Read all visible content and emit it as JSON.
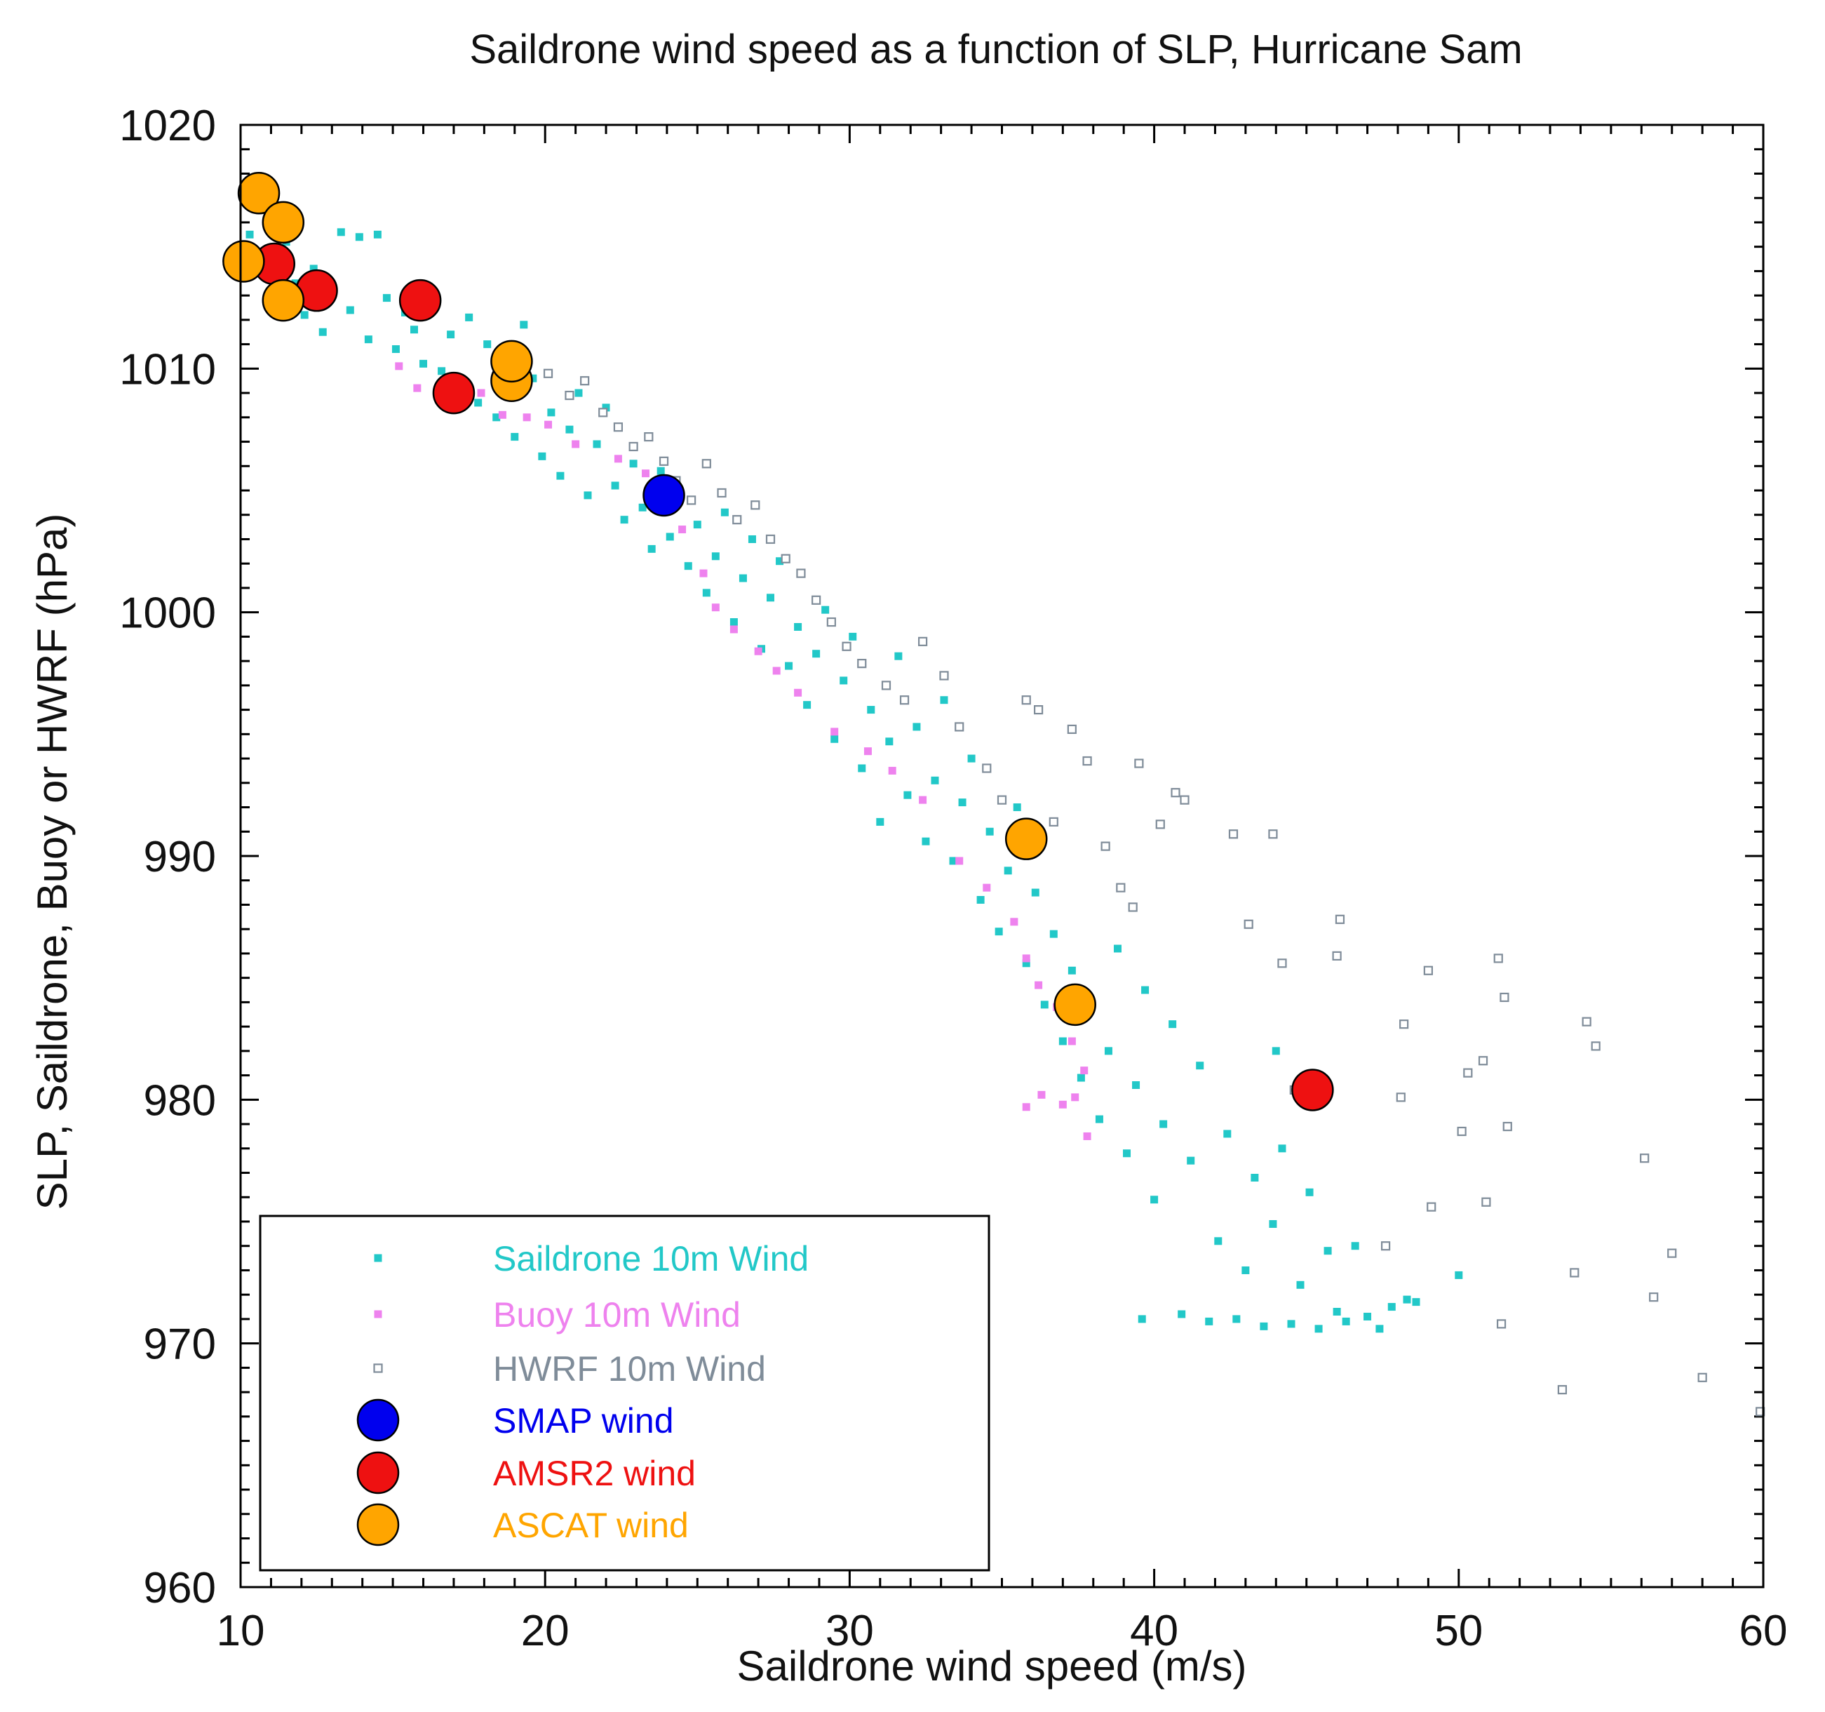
{
  "chart_data": {
    "type": "scatter",
    "title": "Saildrone wind  speed as a function of SLP, Hurricane Sam",
    "xlabel": "Saildrone wind speed (m/s)",
    "ylabel": "SLP, Saildrone, Buoy or HWRF (hPa)",
    "xlim": [
      10,
      60
    ],
    "ylim": [
      960,
      1020
    ],
    "xticks": [
      "10",
      "20",
      "30",
      "40",
      "50",
      "60"
    ],
    "yticks": [
      "960",
      "970",
      "980",
      "990",
      "1000",
      "1010",
      "1020"
    ],
    "legend_position": "bottom-left",
    "series": [
      {
        "name": "Saildrone 10m Wind",
        "marker": "filled-square",
        "color": "#22c8c8",
        "note": "dense cloud of several hundred points; representative sample",
        "points": [
          [
            10.3,
            1015.5
          ],
          [
            10.6,
            1014.8
          ],
          [
            10.9,
            1013.9
          ],
          [
            11.2,
            1012.8
          ],
          [
            11.5,
            1015.2
          ],
          [
            11.8,
            1013.5
          ],
          [
            12.1,
            1012.2
          ],
          [
            12.4,
            1014.1
          ],
          [
            12.7,
            1011.5
          ],
          [
            13.0,
            1013.0
          ],
          [
            13.3,
            1015.6
          ],
          [
            13.6,
            1012.4
          ],
          [
            13.9,
            1015.4
          ],
          [
            14.2,
            1011.2
          ],
          [
            14.5,
            1015.5
          ],
          [
            14.8,
            1012.9
          ],
          [
            15.1,
            1010.8
          ],
          [
            15.4,
            1012.3
          ],
          [
            15.7,
            1011.6
          ],
          [
            16.0,
            1010.2
          ],
          [
            16.3,
            1012.7
          ],
          [
            16.6,
            1009.9
          ],
          [
            16.9,
            1011.4
          ],
          [
            17.2,
            1009.1
          ],
          [
            17.5,
            1012.1
          ],
          [
            17.8,
            1008.6
          ],
          [
            18.1,
            1011.0
          ],
          [
            18.4,
            1008.0
          ],
          [
            18.7,
            1010.6
          ],
          [
            19.0,
            1007.2
          ],
          [
            19.3,
            1011.8
          ],
          [
            19.6,
            1009.6
          ],
          [
            19.9,
            1006.4
          ],
          [
            20.2,
            1008.2
          ],
          [
            20.5,
            1005.6
          ],
          [
            20.8,
            1007.5
          ],
          [
            21.1,
            1009.0
          ],
          [
            21.4,
            1004.8
          ],
          [
            21.7,
            1006.9
          ],
          [
            22.0,
            1008.4
          ],
          [
            22.3,
            1005.2
          ],
          [
            22.6,
            1003.8
          ],
          [
            22.9,
            1006.1
          ],
          [
            23.2,
            1004.3
          ],
          [
            23.5,
            1002.6
          ],
          [
            23.8,
            1005.8
          ],
          [
            24.1,
            1003.1
          ],
          [
            24.4,
            1004.6
          ],
          [
            24.7,
            1001.9
          ],
          [
            25.0,
            1003.6
          ],
          [
            25.3,
            1000.8
          ],
          [
            25.6,
            1002.3
          ],
          [
            25.9,
            1004.1
          ],
          [
            26.2,
            999.6
          ],
          [
            26.5,
            1001.4
          ],
          [
            26.8,
            1003.0
          ],
          [
            27.1,
            998.5
          ],
          [
            27.4,
            1000.6
          ],
          [
            27.7,
            1002.1
          ],
          [
            28.0,
            997.8
          ],
          [
            28.3,
            999.4
          ],
          [
            28.6,
            996.2
          ],
          [
            28.9,
            998.3
          ],
          [
            29.2,
            1000.1
          ],
          [
            29.5,
            994.8
          ],
          [
            29.8,
            997.2
          ],
          [
            30.1,
            999.0
          ],
          [
            30.4,
            993.6
          ],
          [
            30.7,
            996.0
          ],
          [
            31.0,
            991.4
          ],
          [
            31.3,
            994.7
          ],
          [
            31.6,
            998.2
          ],
          [
            31.9,
            992.5
          ],
          [
            32.2,
            995.3
          ],
          [
            32.5,
            990.6
          ],
          [
            32.8,
            993.1
          ],
          [
            33.1,
            996.4
          ],
          [
            33.4,
            989.8
          ],
          [
            33.7,
            992.2
          ],
          [
            34.0,
            994.0
          ],
          [
            34.3,
            988.2
          ],
          [
            34.6,
            991.0
          ],
          [
            34.9,
            986.9
          ],
          [
            35.2,
            989.4
          ],
          [
            35.5,
            992.0
          ],
          [
            35.8,
            985.6
          ],
          [
            36.1,
            988.5
          ],
          [
            36.4,
            983.9
          ],
          [
            36.7,
            986.8
          ],
          [
            37.0,
            982.4
          ],
          [
            37.3,
            985.3
          ],
          [
            37.6,
            980.9
          ],
          [
            37.9,
            983.7
          ],
          [
            38.2,
            979.2
          ],
          [
            38.5,
            982.0
          ],
          [
            38.8,
            986.2
          ],
          [
            39.1,
            977.8
          ],
          [
            39.4,
            980.6
          ],
          [
            39.7,
            984.5
          ],
          [
            40.0,
            975.9
          ],
          [
            40.3,
            979.0
          ],
          [
            40.6,
            983.1
          ],
          [
            40.9,
            971.2
          ],
          [
            41.2,
            977.5
          ],
          [
            41.5,
            981.4
          ],
          [
            41.8,
            970.9
          ],
          [
            42.1,
            974.2
          ],
          [
            42.4,
            978.6
          ],
          [
            42.7,
            971.0
          ],
          [
            43.0,
            973.0
          ],
          [
            43.3,
            976.8
          ],
          [
            43.6,
            970.7
          ],
          [
            43.9,
            974.9
          ],
          [
            44.2,
            978.0
          ],
          [
            44.5,
            970.8
          ],
          [
            44.8,
            972.4
          ],
          [
            45.1,
            976.2
          ],
          [
            45.4,
            970.6
          ],
          [
            45.7,
            973.8
          ],
          [
            46.0,
            971.3
          ],
          [
            46.3,
            970.9
          ],
          [
            46.6,
            974.0
          ],
          [
            47.0,
            971.1
          ],
          [
            47.4,
            970.6
          ],
          [
            47.8,
            971.5
          ],
          [
            48.3,
            971.8
          ],
          [
            48.6,
            971.7
          ],
          [
            50.0,
            972.8
          ],
          [
            44.0,
            982.0
          ],
          [
            39.6,
            971.0
          ]
        ]
      },
      {
        "name": "Buoy 10m Wind",
        "marker": "filled-square",
        "color": "#ee82ee",
        "points": [
          [
            15.2,
            1010.1
          ],
          [
            15.8,
            1009.2
          ],
          [
            16.5,
            1008.8
          ],
          [
            17.2,
            1009.5
          ],
          [
            17.9,
            1009.0
          ],
          [
            18.6,
            1008.1
          ],
          [
            19.4,
            1008.0
          ],
          [
            20.1,
            1007.7
          ],
          [
            21.0,
            1006.9
          ],
          [
            22.4,
            1006.3
          ],
          [
            23.3,
            1005.7
          ],
          [
            24.5,
            1003.4
          ],
          [
            25.2,
            1001.6
          ],
          [
            25.6,
            1000.2
          ],
          [
            26.2,
            999.3
          ],
          [
            27.0,
            998.4
          ],
          [
            27.6,
            997.6
          ],
          [
            28.3,
            996.7
          ],
          [
            29.5,
            995.1
          ],
          [
            30.6,
            994.3
          ],
          [
            31.4,
            993.5
          ],
          [
            32.4,
            992.3
          ],
          [
            33.6,
            989.8
          ],
          [
            34.5,
            988.7
          ],
          [
            35.4,
            987.3
          ],
          [
            35.8,
            985.8
          ],
          [
            36.2,
            984.7
          ],
          [
            36.8,
            983.8
          ],
          [
            37.3,
            982.4
          ],
          [
            37.7,
            981.2
          ],
          [
            36.3,
            980.2
          ],
          [
            35.8,
            979.7
          ],
          [
            37.0,
            979.8
          ],
          [
            37.4,
            980.1
          ],
          [
            37.8,
            978.5
          ]
        ]
      },
      {
        "name": "HWRF 10m Wind",
        "marker": "open-square",
        "color": "#7f8c99",
        "points": [
          [
            20.1,
            1009.8
          ],
          [
            20.8,
            1008.9
          ],
          [
            21.3,
            1009.5
          ],
          [
            21.9,
            1008.2
          ],
          [
            22.4,
            1007.6
          ],
          [
            22.9,
            1006.8
          ],
          [
            23.4,
            1007.2
          ],
          [
            23.9,
            1006.2
          ],
          [
            24.3,
            1005.4
          ],
          [
            24.8,
            1004.6
          ],
          [
            25.3,
            1006.1
          ],
          [
            25.8,
            1004.9
          ],
          [
            26.3,
            1003.8
          ],
          [
            26.9,
            1004.4
          ],
          [
            27.4,
            1003.0
          ],
          [
            27.9,
            1002.2
          ],
          [
            28.4,
            1001.6
          ],
          [
            28.9,
            1000.5
          ],
          [
            29.4,
            999.6
          ],
          [
            29.9,
            998.6
          ],
          [
            30.4,
            997.9
          ],
          [
            31.2,
            997.0
          ],
          [
            31.8,
            996.4
          ],
          [
            32.4,
            998.8
          ],
          [
            33.1,
            997.4
          ],
          [
            33.6,
            995.3
          ],
          [
            34.5,
            993.6
          ],
          [
            35.0,
            992.3
          ],
          [
            35.6,
            990.9
          ],
          [
            35.8,
            996.4
          ],
          [
            36.2,
            996.0
          ],
          [
            36.7,
            991.4
          ],
          [
            37.3,
            995.2
          ],
          [
            37.8,
            993.9
          ],
          [
            38.4,
            990.4
          ],
          [
            38.9,
            988.7
          ],
          [
            39.3,
            987.9
          ],
          [
            39.5,
            993.8
          ],
          [
            40.2,
            991.3
          ],
          [
            40.7,
            992.6
          ],
          [
            41.0,
            992.3
          ],
          [
            42.6,
            990.9
          ],
          [
            43.1,
            987.2
          ],
          [
            43.9,
            990.9
          ],
          [
            44.2,
            985.6
          ],
          [
            44.6,
            980.4
          ],
          [
            46.1,
            987.4
          ],
          [
            46.0,
            985.9
          ],
          [
            48.2,
            983.1
          ],
          [
            48.1,
            980.1
          ],
          [
            49.0,
            985.3
          ],
          [
            49.1,
            975.6
          ],
          [
            50.1,
            978.7
          ],
          [
            50.3,
            981.1
          ],
          [
            50.8,
            981.6
          ],
          [
            50.9,
            975.8
          ],
          [
            51.3,
            985.8
          ],
          [
            51.4,
            970.8
          ],
          [
            51.5,
            984.2
          ],
          [
            51.6,
            978.9
          ],
          [
            53.4,
            968.1
          ],
          [
            53.8,
            972.9
          ],
          [
            54.2,
            983.2
          ],
          [
            54.5,
            982.2
          ],
          [
            56.1,
            977.6
          ],
          [
            56.4,
            971.9
          ],
          [
            57.0,
            973.7
          ],
          [
            58.0,
            968.6
          ],
          [
            59.9,
            967.2
          ],
          [
            47.6,
            974.0
          ]
        ]
      },
      {
        "name": "SMAP wind",
        "marker": "large-circle",
        "color": "#0000ee",
        "points": [
          [
            23.9,
            1004.8
          ]
        ]
      },
      {
        "name": "AMSR2 wind",
        "marker": "large-circle",
        "color": "#ee1111",
        "points": [
          [
            11.1,
            1014.3
          ],
          [
            12.5,
            1013.2
          ],
          [
            15.9,
            1012.8
          ],
          [
            17.0,
            1009.0
          ],
          [
            45.2,
            980.4
          ]
        ]
      },
      {
        "name": "ASCAT wind",
        "marker": "large-circle",
        "color": "#ffa500",
        "points": [
          [
            10.1,
            1014.4
          ],
          [
            10.6,
            1017.2
          ],
          [
            11.4,
            1016.0
          ],
          [
            11.4,
            1012.8
          ],
          [
            18.9,
            1009.5
          ],
          [
            18.9,
            1010.3
          ],
          [
            35.8,
            990.7
          ],
          [
            37.4,
            983.9
          ]
        ]
      }
    ]
  }
}
